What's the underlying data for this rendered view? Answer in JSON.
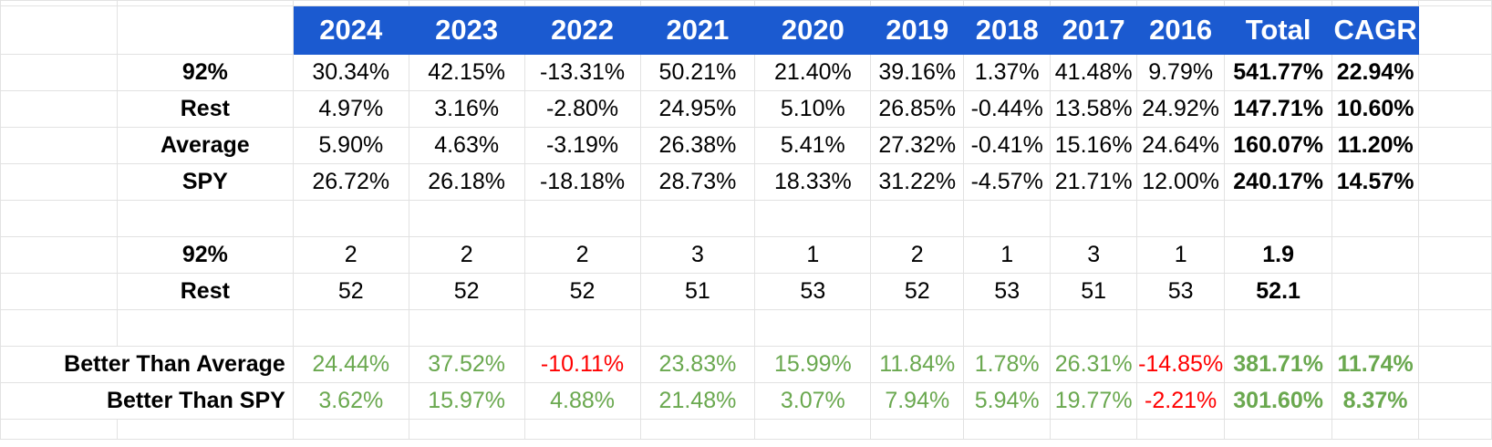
{
  "header": [
    "2024",
    "2023",
    "2022",
    "2021",
    "2020",
    "2019",
    "2018",
    "2017",
    "2016",
    "Total",
    "CAGR"
  ],
  "returns": [
    {
      "label": "92%",
      "values": [
        "30.34%",
        "42.15%",
        "-13.31%",
        "50.21%",
        "21.40%",
        "39.16%",
        "1.37%",
        "41.48%",
        "9.79%"
      ],
      "total": "541.77%",
      "cagr": "22.94%"
    },
    {
      "label": "Rest",
      "values": [
        "4.97%",
        "3.16%",
        "-2.80%",
        "24.95%",
        "5.10%",
        "26.85%",
        "-0.44%",
        "13.58%",
        "24.92%"
      ],
      "total": "147.71%",
      "cagr": "10.60%"
    },
    {
      "label": "Average",
      "values": [
        "5.90%",
        "4.63%",
        "-3.19%",
        "26.38%",
        "5.41%",
        "27.32%",
        "-0.41%",
        "15.16%",
        "24.64%"
      ],
      "total": "160.07%",
      "cagr": "11.20%"
    },
    {
      "label": "SPY",
      "values": [
        "26.72%",
        "26.18%",
        "-18.18%",
        "28.73%",
        "18.33%",
        "31.22%",
        "-4.57%",
        "21.71%",
        "12.00%"
      ],
      "total": "240.17%",
      "cagr": "14.57%"
    }
  ],
  "counts": [
    {
      "label": "92%",
      "values": [
        "2",
        "2",
        "2",
        "3",
        "1",
        "2",
        "1",
        "3",
        "1"
      ],
      "total": "1.9"
    },
    {
      "label": "Rest",
      "values": [
        "52",
        "52",
        "52",
        "51",
        "53",
        "52",
        "53",
        "51",
        "53"
      ],
      "total": "52.1"
    }
  ],
  "comparisons": [
    {
      "label": "Better Than Average",
      "values": [
        "24.44%",
        "37.52%",
        "-10.11%",
        "23.83%",
        "15.99%",
        "11.84%",
        "1.78%",
        "26.31%",
        "-14.85%"
      ],
      "total": "381.71%",
      "cagr": "11.74%"
    },
    {
      "label": "Better Than SPY",
      "values": [
        "3.62%",
        "15.97%",
        "4.88%",
        "21.48%",
        "3.07%",
        "7.94%",
        "5.94%",
        "19.77%",
        "-2.21%"
      ],
      "total": "301.60%",
      "cagr": "8.37%"
    }
  ],
  "colors": {
    "header_bg": "#1b5ad0",
    "positive": "#6aa84f",
    "negative": "#ff0000"
  }
}
